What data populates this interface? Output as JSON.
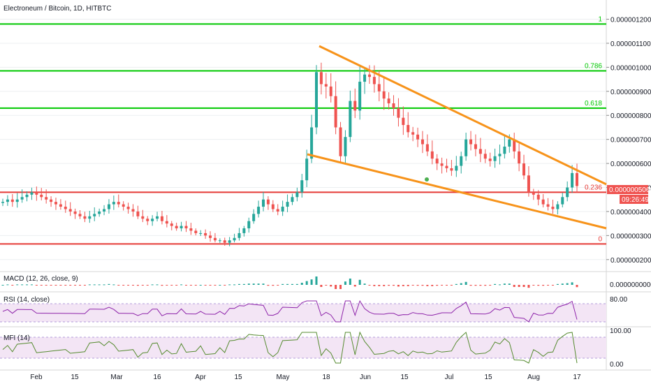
{
  "header": {
    "title": "Electroneum / Bitcoin, 1D, HITBTC"
  },
  "price_axis": {
    "ticks": [
      "0.0000012000",
      "0.0000011000",
      "0.0000010000",
      "0.0000009000",
      "0.0000008000",
      "0.0000007000",
      "0.0000006000",
      "0.0000005000",
      "0.0000004000",
      "0.0000003000",
      "0.0000002000"
    ],
    "last_price_label": "0.0000005060",
    "countdown_label": "09:26:49",
    "last_price_color": "#ef5350"
  },
  "fib_levels": [
    {
      "label": "1",
      "value": 1.18e-06,
      "color": "#00c800"
    },
    {
      "label": "0.786",
      "value": 9.85e-07,
      "color": "#00c800"
    },
    {
      "label": "0.618",
      "value": 8.3e-07,
      "color": "#00c800"
    },
    {
      "label": "0.236",
      "value": 4.8e-07,
      "color": "#e53935"
    },
    {
      "label": "0",
      "value": 2.65e-07,
      "color": "#e53935"
    }
  ],
  "x_axis": {
    "labels": [
      "Feb",
      "15",
      "Mar",
      "16",
      "Apr",
      "15",
      "May",
      "18",
      "Jun",
      "15",
      "Jul",
      "15",
      "Aug",
      "17"
    ]
  },
  "indicators": {
    "macd": {
      "label": "MACD (12, 26, close, 9)",
      "tick": "0.0000000000"
    },
    "rsi": {
      "label": "RSI (14, close)",
      "tick": "80.00"
    },
    "mfi": {
      "label": "MFI (14)",
      "ticks": [
        "100.00",
        "0.00"
      ]
    }
  },
  "colors": {
    "up": "#26a69a",
    "down": "#ef5350",
    "trendline": "#f7931a",
    "grid": "#eceff1",
    "rsi_line": "#8e24aa",
    "mfi_line": "#558b2f",
    "band_fill": "#f3e5f5"
  },
  "chart_data": {
    "type": "candlestick",
    "title": "Electroneum / Bitcoin, 1D, HITBTC",
    "ylim": [
      1.5e-07,
      1.28e-06
    ],
    "x_range": [
      "Jan 18",
      "Aug 20"
    ],
    "closes": [
      4.4e-07,
      4.5e-07,
      4.4e-07,
      4.5e-07,
      4.6e-07,
      4.7e-07,
      4.8e-07,
      4.7e-07,
      4.6e-07,
      4.5e-07,
      4.4e-07,
      4.3e-07,
      4.2e-07,
      4.1e-07,
      4e-07,
      3.9e-07,
      3.8e-07,
      3.7e-07,
      3.8e-07,
      3.9e-07,
      4e-07,
      4.1e-07,
      4.3e-07,
      4.4e-07,
      4.3e-07,
      4.2e-07,
      4.1e-07,
      4e-07,
      3.8e-07,
      3.7e-07,
      3.6e-07,
      3.7e-07,
      3.8e-07,
      3.6e-07,
      3.5e-07,
      3.4e-07,
      3.3e-07,
      3.4e-07,
      3.3e-07,
      3.2e-07,
      3.1e-07,
      3.1e-07,
      3e-07,
      2.9e-07,
      2.8e-07,
      2.8e-07,
      2.7e-07,
      2.8e-07,
      2.9e-07,
      3.1e-07,
      3.3e-07,
      3.6e-07,
      3.9e-07,
      4.2e-07,
      4.5e-07,
      4.3e-07,
      4.1e-07,
      4e-07,
      4.2e-07,
      4.4e-07,
      4.6e-07,
      4.8e-07,
      5.3e-07,
      6.2e-07,
      7.5e-07,
      9.8e-07,
      9.3e-07,
      9.2e-07,
      8.8e-07,
      7.5e-07,
      6.3e-07,
      7.1e-07,
      8.6e-07,
      8.2e-07,
      9.4e-07,
      9.7e-07,
      9.6e-07,
      9.3e-07,
      9e-07,
      8.7e-07,
      8.5e-07,
      8.3e-07,
      7.9e-07,
      7.6e-07,
      7.3e-07,
      7.2e-07,
      7e-07,
      6.8e-07,
      6.5e-07,
      6.2e-07,
      6e-07,
      5.9e-07,
      5.8e-07,
      5.7e-07,
      5.9e-07,
      6.3e-07,
      7e-07,
      6.8e-07,
      6.6e-07,
      6.4e-07,
      6.2e-07,
      6.1e-07,
      6.3e-07,
      6.4e-07,
      6.7e-07,
      7e-07,
      6.5e-07,
      6e-07,
      5.5e-07,
      4.8e-07,
      4.7e-07,
      4.5e-07,
      4.3e-07,
      4.2e-07,
      4.1e-07,
      4.3e-07,
      4.6e-07,
      5e-07,
      5.6e-07,
      5.06e-07
    ],
    "annotations": [
      "1",
      "0.786",
      "0.618",
      "0.236",
      "0"
    ]
  }
}
